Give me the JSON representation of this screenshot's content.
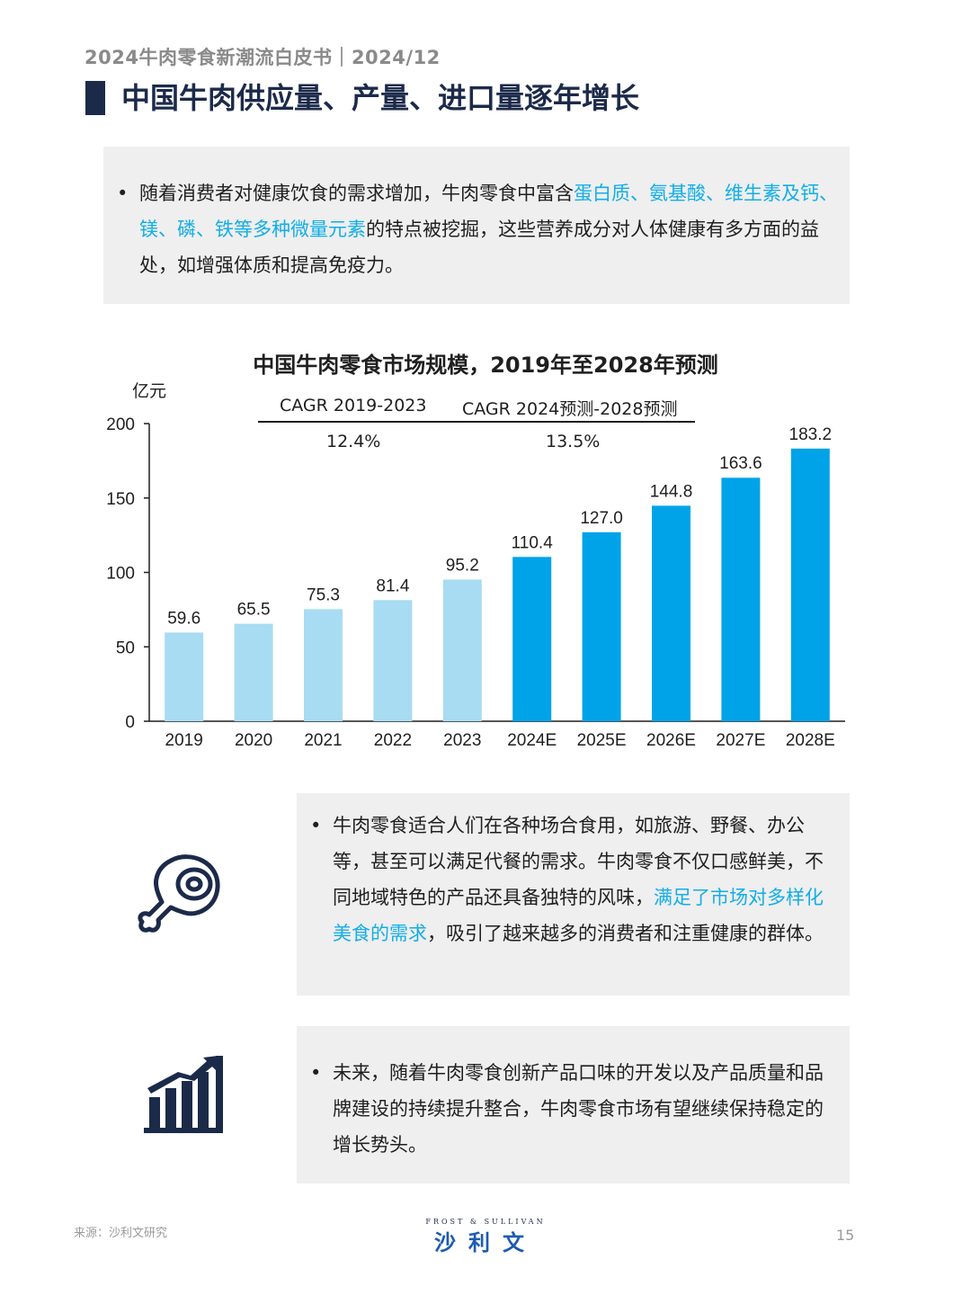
{
  "header": {
    "subtitle": "2024牛肉零食新潮流白皮书｜2024/12",
    "title": "中国牛肉供应量、产量、进口量逐年增长"
  },
  "intro": {
    "bullet": "•",
    "p1": "随着消费者对健康饮食的需求增加，牛肉零食中富含",
    "hl1": "蛋白质、氨基酸、维生素及钙、镁、磷、铁等多种微量元素",
    "p2": "的特点被挖掘，这些营养成分对人体健康有多方面的益处，如增强体质和提高免疫力。"
  },
  "chart_data": {
    "type": "bar",
    "title": "中国牛肉零食市场规模，2019年至2028年预测",
    "unit": "亿元",
    "categories": [
      "2019",
      "2020",
      "2021",
      "2022",
      "2023",
      "2024E",
      "2025E",
      "2026E",
      "2027E",
      "2028E"
    ],
    "values": [
      59.6,
      65.5,
      75.3,
      81.4,
      95.2,
      110.4,
      127.0,
      144.8,
      163.6,
      183.2
    ],
    "value_labels": [
      "59.6",
      "65.5",
      "75.3",
      "81.4",
      "95.2",
      "110.4",
      "127.0",
      "144.8",
      "163.6",
      "183.2"
    ],
    "ylim": [
      0,
      200
    ],
    "yticks": [
      0,
      50,
      100,
      150,
      200
    ],
    "colors": {
      "actual": "#a8dcf2",
      "forecast": "#00a3e8"
    },
    "forecast_start_index": 5,
    "cagr": [
      {
        "label": "CAGR 2019-2023",
        "value": "12.4%"
      },
      {
        "label": "CAGR 2024预测-2028预测",
        "value": "13.5%"
      }
    ],
    "grid": false
  },
  "panel2": {
    "bullet": "•",
    "p1": "牛肉零食适合人们在各种场合食用，如旅游、野餐、办公等，甚至可以满足代餐的需求。牛肉零食不仅口感鲜美，不同地域特色的产品还具备独特的风味，",
    "hl1": "满足了市场对多样化美食的需求",
    "p2": "，吸引了越来越多的消费者和注重健康的群体。",
    "icon": "meat-leg-icon"
  },
  "panel3": {
    "bullet": "•",
    "p1": "未来，随着牛肉零食创新产品口味的开发以及产品质量和品牌建设的持续提升整合，牛肉零食市场有望继续保持稳定的增长势头。",
    "icon": "growth-chart-icon"
  },
  "footer": {
    "source": "来源：沙利文研究",
    "logo_small": "FROST & SULLIVAN",
    "logo": "沙利文",
    "page": "15"
  },
  "accent_color": "#12aee8",
  "brand_color": "#1c2a4a"
}
